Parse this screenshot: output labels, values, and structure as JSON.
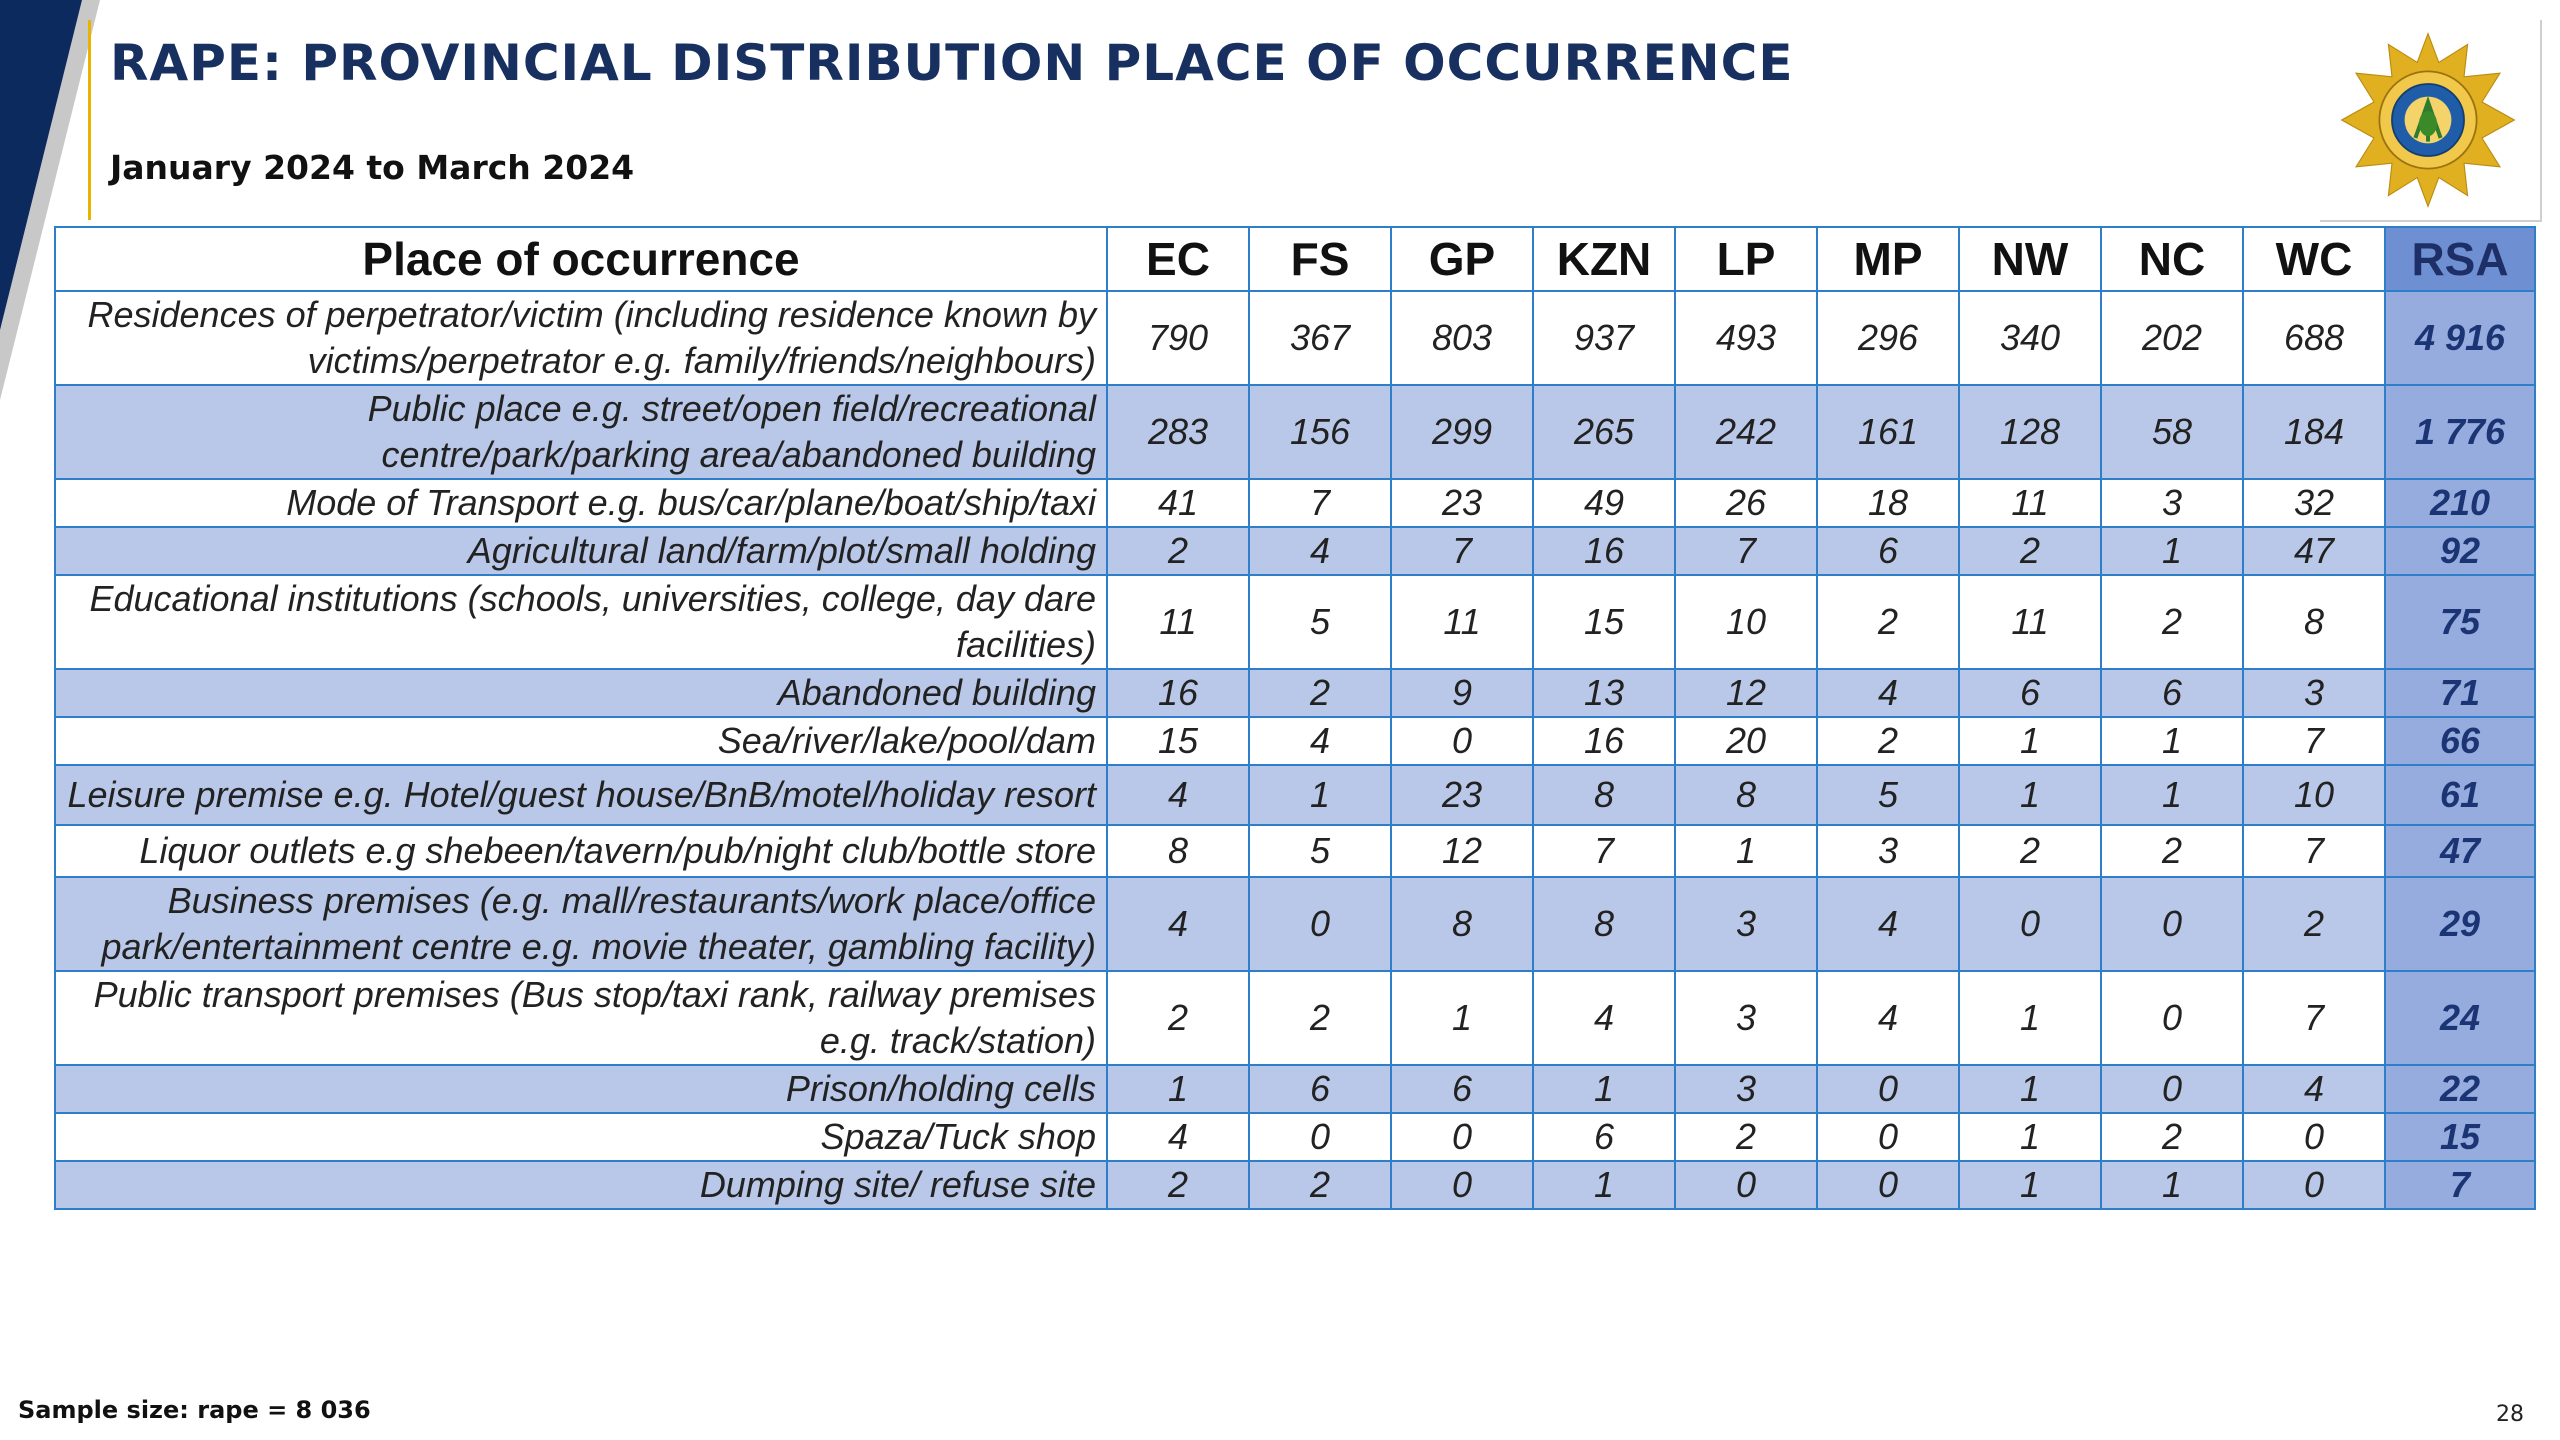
{
  "header": {
    "title": "RAPE: PROVINCIAL DISTRIBUTION PLACE OF OCCURRENCE",
    "subtitle": "January 2024 to March 2024",
    "logo_icon": "saps-star-badge-icon"
  },
  "table": {
    "columns": [
      "Place of occurrence",
      "EC",
      "FS",
      "GP",
      "KZN",
      "LP",
      "MP",
      "NW",
      "NC",
      "WC",
      "RSA"
    ],
    "rows": [
      {
        "place": "Residences of perpetrator/victim (including residence known by victims/perpetrator e.g. family/friends/neighbours)",
        "values": [
          "790",
          "367",
          "803",
          "937",
          "493",
          "296",
          "340",
          "202",
          "688",
          "4 916"
        ]
      },
      {
        "place": "Public place e.g. street/open field/recreational centre/park/parking area/abandoned building",
        "values": [
          "283",
          "156",
          "299",
          "265",
          "242",
          "161",
          "128",
          "58",
          "184",
          "1 776"
        ]
      },
      {
        "place": "Mode of Transport e.g. bus/car/plane/boat/ship/taxi",
        "values": [
          "41",
          "7",
          "23",
          "49",
          "26",
          "18",
          "11",
          "3",
          "32",
          "210"
        ]
      },
      {
        "place": "Agricultural land/farm/plot/small holding",
        "values": [
          "2",
          "4",
          "7",
          "16",
          "7",
          "6",
          "2",
          "1",
          "47",
          "92"
        ]
      },
      {
        "place": "Educational institutions (schools, universities, college, day dare facilities)",
        "values": [
          "11",
          "5",
          "11",
          "15",
          "10",
          "2",
          "11",
          "2",
          "8",
          "75"
        ]
      },
      {
        "place": "Abandoned building",
        "values": [
          "16",
          "2",
          "9",
          "13",
          "12",
          "4",
          "6",
          "6",
          "3",
          "71"
        ]
      },
      {
        "place": "Sea/river/lake/pool/dam",
        "values": [
          "15",
          "4",
          "0",
          "16",
          "20",
          "2",
          "1",
          "1",
          "7",
          "66"
        ]
      },
      {
        "place": "Leisure premise e.g. Hotel/guest house/BnB/motel/holiday resort",
        "values": [
          "4",
          "1",
          "23",
          "8",
          "8",
          "5",
          "1",
          "1",
          "10",
          "61"
        ]
      },
      {
        "place": "Liquor outlets  e.g shebeen/tavern/pub/night club/bottle store",
        "values": [
          "8",
          "5",
          "12",
          "7",
          "1",
          "3",
          "2",
          "2",
          "7",
          "47"
        ]
      },
      {
        "place": "Business premises (e.g. mall/restaurants/work place/office park/entertainment centre e.g. movie theater, gambling facility)",
        "values": [
          "4",
          "0",
          "8",
          "8",
          "3",
          "4",
          "0",
          "0",
          "2",
          "29"
        ]
      },
      {
        "place": "Public transport premises (Bus stop/taxi rank, railway premises e.g. track/station)",
        "values": [
          "2",
          "2",
          "1",
          "4",
          "3",
          "4",
          "1",
          "0",
          "7",
          "24"
        ]
      },
      {
        "place": "Prison/holding cells",
        "values": [
          "1",
          "6",
          "6",
          "1",
          "3",
          "0",
          "1",
          "0",
          "4",
          "22"
        ]
      },
      {
        "place": "Spaza/Tuck shop",
        "values": [
          "4",
          "0",
          "0",
          "6",
          "2",
          "0",
          "1",
          "2",
          "0",
          "15"
        ]
      },
      {
        "place": "Dumping site/ refuse site",
        "values": [
          "2",
          "2",
          "0",
          "1",
          "0",
          "0",
          "1",
          "1",
          "0",
          "7"
        ]
      }
    ]
  },
  "footer": {
    "sample_size": "Sample size: rape = 8 036",
    "page_number": "28"
  },
  "colors": {
    "title": "#17305f",
    "table_border": "#2f7ec9",
    "row_shade": "#b9c8e8",
    "rsa_column": "#96acdf",
    "rsa_header": "#6e90d2",
    "accent_gold": "#e8b400",
    "navy": "#0d2a5e"
  }
}
